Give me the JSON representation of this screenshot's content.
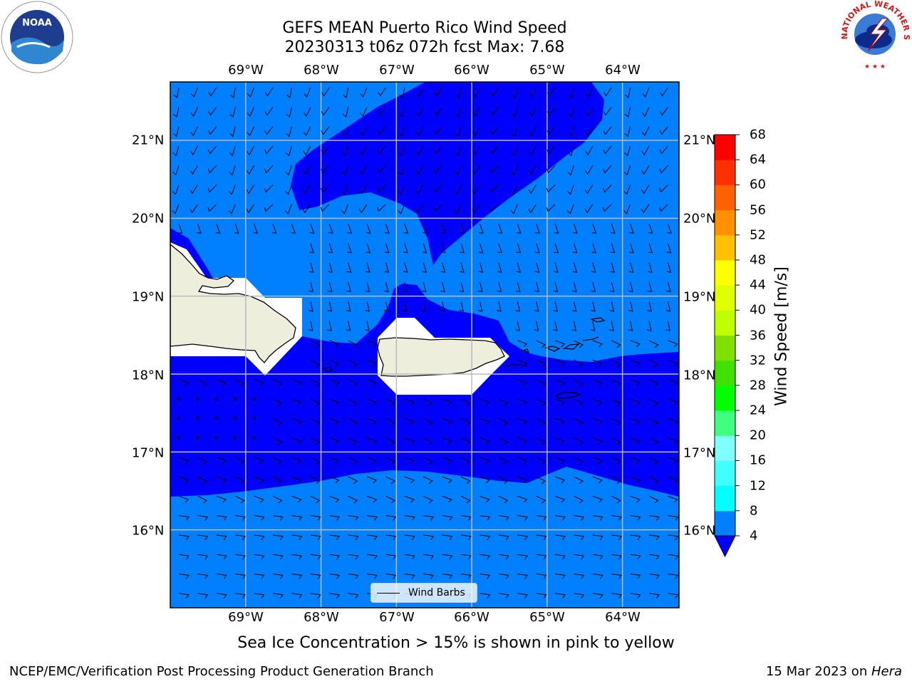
{
  "title": {
    "line1": "GEFS MEAN Puerto Rico Wind Speed",
    "line2": "20230313 t06z 072h fcst   Max: 7.68"
  },
  "logos": {
    "noaa": "NOAA",
    "nws": "NATIONAL WEATHER SERVICE"
  },
  "map": {
    "lon_labels": [
      "69°W",
      "68°W",
      "67°W",
      "66°W",
      "65°W",
      "64°W"
    ],
    "lat_labels": [
      "21°N",
      "20°N",
      "19°N",
      "18°N",
      "17°N",
      "16°N"
    ],
    "lon_range": [
      -70.0,
      -63.25
    ],
    "lat_range": [
      15.0,
      21.75
    ],
    "legend_label": "Wind Barbs",
    "colors": {
      "light_band": "#0080ff",
      "dark_band": "#0000ff",
      "land": "#eeeedd"
    }
  },
  "colorbar": {
    "label": "Wind Speed [m/s]",
    "ticks": [
      "4",
      "8",
      "12",
      "16",
      "20",
      "24",
      "28",
      "32",
      "36",
      "40",
      "44",
      "48",
      "52",
      "56",
      "60",
      "64",
      "68"
    ],
    "colors": [
      "#0080ff",
      "#00ffff",
      "#40ffff",
      "#80ffff",
      "#40ff80",
      "#00ff00",
      "#40e000",
      "#80e000",
      "#c0ff00",
      "#e0ff00",
      "#ffff00",
      "#ffc000",
      "#ff9000",
      "#ff6000",
      "#ff3000",
      "#ff0000"
    ],
    "extend_color": "#0000ff"
  },
  "caption": "Sea Ice Concentration > 15% is shown in pink to yellow",
  "footer": {
    "credit": "NCEP/EMC/Verification Post Processing Product Generation Branch",
    "date_prefix": "15 Mar 2023 on ",
    "host": "Hera"
  }
}
